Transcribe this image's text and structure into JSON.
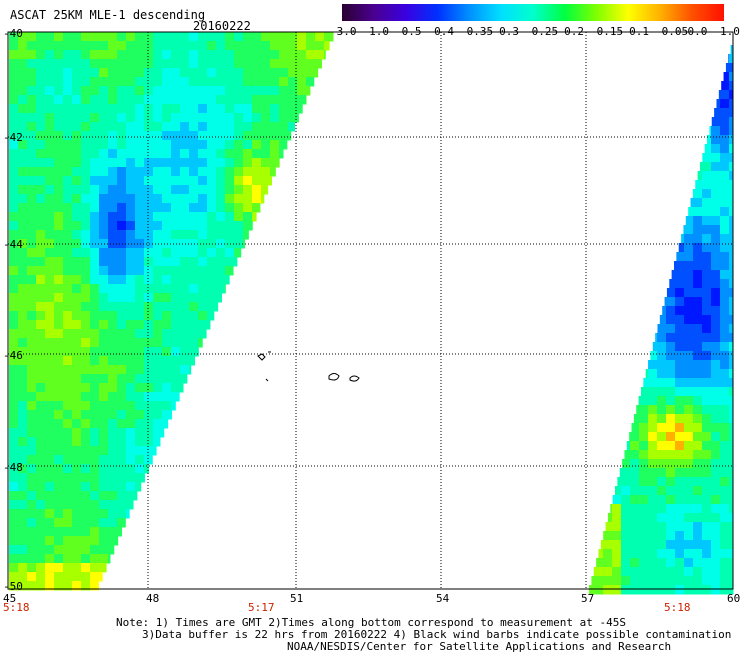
{
  "header": {
    "title": "ASCAT 25KM MLE-1 descending",
    "date": "20160222"
  },
  "colorbar": {
    "labels": [
      "-3.0",
      "-1.0",
      "-0.5",
      "-0.4",
      "-0.35",
      "-0.3",
      "-0.25",
      "-0.2",
      "-0.15",
      "-0.1",
      "-0.05",
      "0.0",
      "1.0"
    ],
    "colors": [
      "#2a0030",
      "#4a0090",
      "#3a00e0",
      "#0030ff",
      "#0090ff",
      "#00e0ff",
      "#00ffcc",
      "#00ff40",
      "#80ff00",
      "#ffff00",
      "#ffb000",
      "#ff5000",
      "#ff1000"
    ]
  },
  "map": {
    "lat_labels": [
      "-40",
      "-42",
      "-44",
      "-46",
      "-48",
      "-50"
    ],
    "lon_labels": [
      "45",
      "48",
      "51",
      "54",
      "57",
      "60"
    ],
    "time_labels": [
      "5:18",
      "5:17",
      "5:18"
    ],
    "time_color": "#cc2200"
  },
  "notes": {
    "line1": "Note: 1) Times are GMT 2)Times along bottom correspond to measurement at -45S",
    "line2": "3)Data buffer is 22 hrs from 20160222 4) Black wind barbs indicate possible contamination",
    "line3": "NOAA/NESDIS/Center for Satellite Applications and Research"
  }
}
